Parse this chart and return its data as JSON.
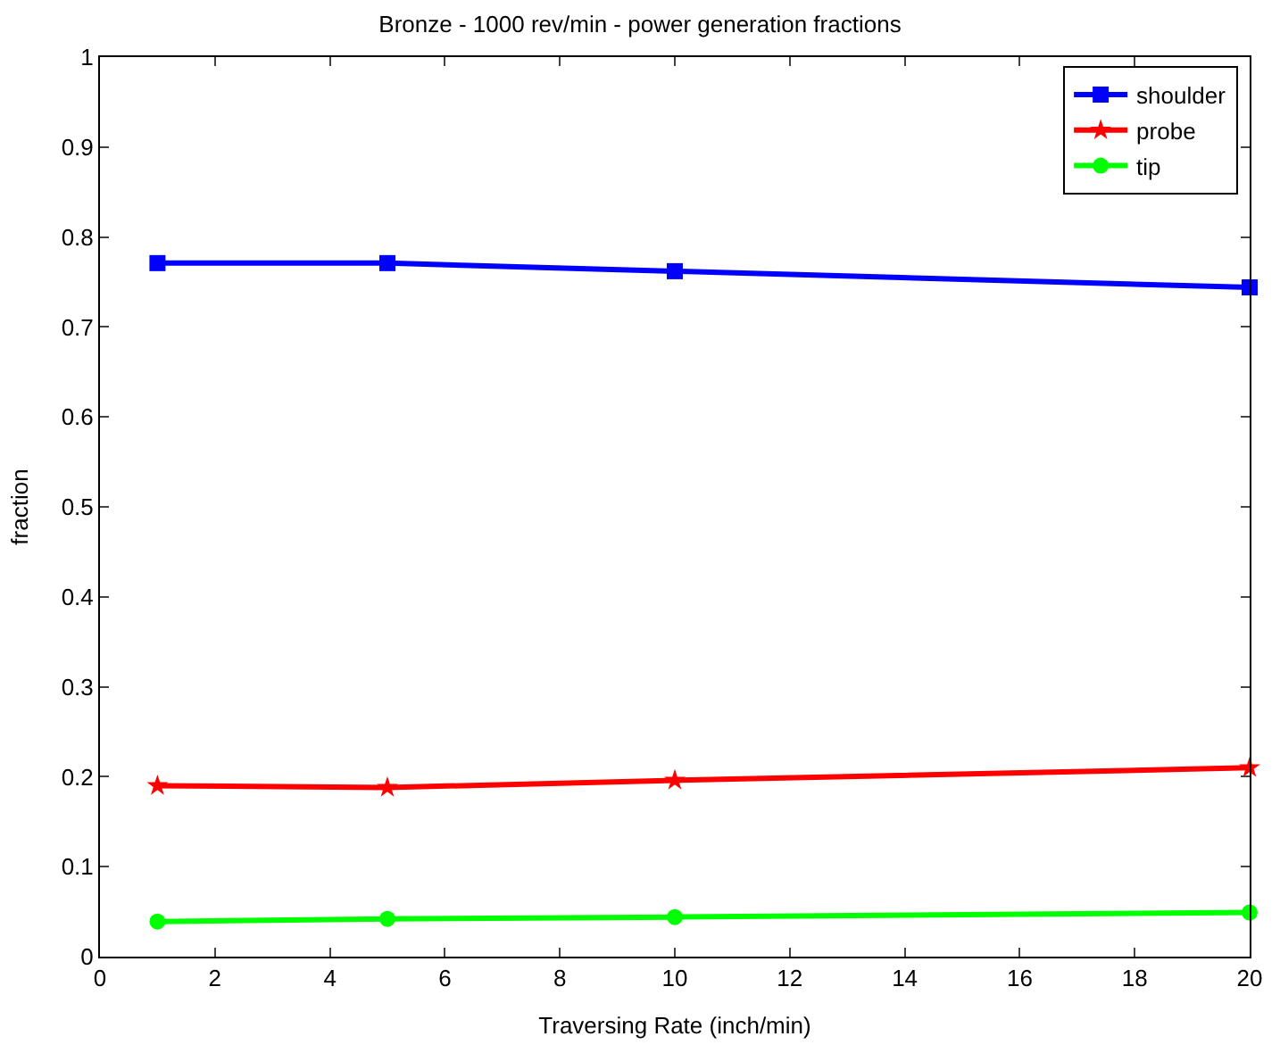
{
  "chart_data": {
    "type": "line",
    "title": "Bronze - 1000 rev/min - power generation fractions",
    "xlabel": "Traversing Rate (inch/min)",
    "ylabel": "fraction",
    "x": [
      1,
      5,
      10,
      20
    ],
    "series": [
      {
        "name": "shoulder",
        "color": "#0000ff",
        "marker": "square",
        "values": [
          0.771,
          0.771,
          0.762,
          0.744
        ]
      },
      {
        "name": "probe",
        "color": "#ff0000",
        "marker": "star",
        "values": [
          0.19,
          0.188,
          0.196,
          0.21
        ]
      },
      {
        "name": "tip",
        "color": "#00ff00",
        "marker": "circle",
        "values": [
          0.039,
          0.042,
          0.044,
          0.049
        ]
      }
    ],
    "xlim": [
      0,
      20
    ],
    "xticks": [
      0,
      2,
      4,
      6,
      8,
      10,
      12,
      14,
      16,
      18,
      20
    ],
    "ylim": [
      0,
      1
    ],
    "yticks": [
      0,
      0.1,
      0.2,
      0.3,
      0.4,
      0.5,
      0.6,
      0.7,
      0.8,
      0.9,
      1
    ],
    "legend": "top right",
    "line_style": "solid"
  }
}
